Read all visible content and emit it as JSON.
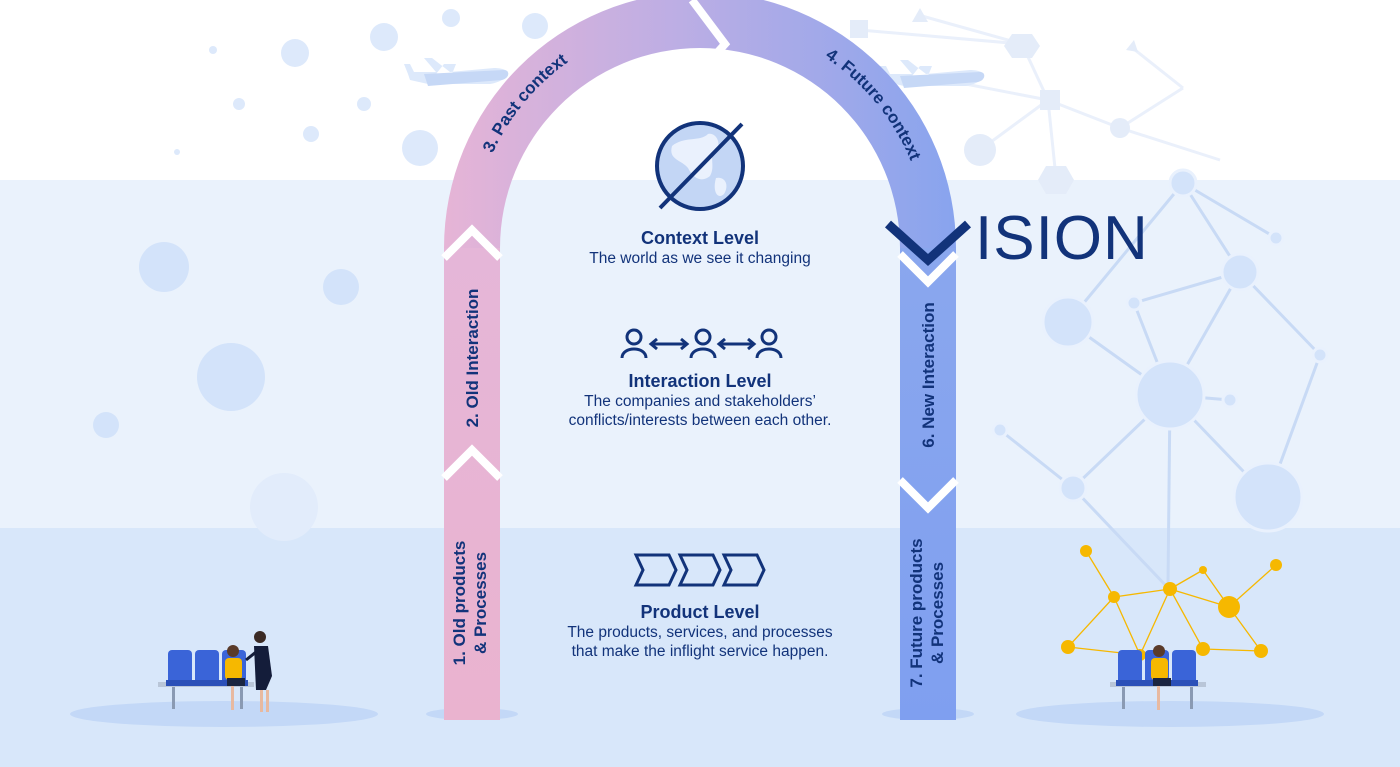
{
  "colors": {
    "dark_blue": "#12337a",
    "pink": "#eab6d4",
    "lavender": "#b8ace6",
    "periwinkle": "#8ea6ef",
    "accent_yellow": "#f6b800"
  },
  "vision": {
    "text": "ISION"
  },
  "arch_segments": [
    {
      "id": "1",
      "label": "1. Old products",
      "label2": "& Processes"
    },
    {
      "id": "2",
      "label": "2. Old Interaction"
    },
    {
      "id": "3",
      "label": "3. Past context"
    },
    {
      "id": "4",
      "label": "4. Future context"
    },
    {
      "id": "6",
      "label": "6. New Interaction"
    },
    {
      "id": "7",
      "label": "7. Future products",
      "label2": "& Processes"
    }
  ],
  "levels": [
    {
      "title": "Context Level",
      "desc": [
        "The world as we see it changing"
      ],
      "icon": "globe-icon"
    },
    {
      "title": "Interaction Level",
      "desc": [
        "The companies and stakeholders’",
        "conflicts/interests between each other."
      ],
      "icon": "people-exchange-icon"
    },
    {
      "title": "Product Level",
      "desc": [
        "The products, services, and processes",
        "that make the inflight service happen."
      ],
      "icon": "process-chevrons-icon"
    }
  ],
  "icons": [
    "airplane-icon",
    "network-icon",
    "seat-icon",
    "passenger-icon",
    "flight-attendant-icon"
  ]
}
